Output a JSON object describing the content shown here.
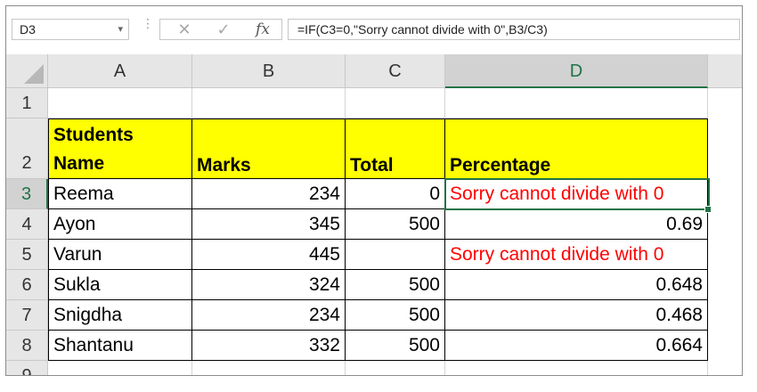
{
  "formula_bar": {
    "name_box": "D3",
    "name_box_dropdown": "▾",
    "separator": "⋮",
    "cancel_icon": "✕",
    "enter_icon": "✓",
    "fx_label": "fx",
    "formula": "=IF(C3=0,\"Sorry cannot divide with 0\",B3/C3)"
  },
  "columns": [
    "A",
    "B",
    "C",
    "D"
  ],
  "rows": [
    "1",
    "2",
    "3",
    "4",
    "5",
    "6",
    "7",
    "8",
    "9"
  ],
  "selected_cell": "D3",
  "headers": {
    "students_line1": "Students",
    "students_line2": "Name",
    "marks": "Marks",
    "total": "Total",
    "percentage": "Percentage"
  },
  "data": [
    {
      "name": "Reema",
      "marks": "234",
      "total": "0",
      "percentage": "Sorry cannot divide with 0"
    },
    {
      "name": "Ayon",
      "marks": "345",
      "total": "500",
      "percentage": "0.69"
    },
    {
      "name": "Varun",
      "marks": "445",
      "total": "",
      "percentage": "Sorry cannot divide with 0"
    },
    {
      "name": "Sukla",
      "marks": "324",
      "total": "500",
      "percentage": "0.648"
    },
    {
      "name": "Snigdha",
      "marks": "234",
      "total": "500",
      "percentage": "0.468"
    },
    {
      "name": "Shantanu",
      "marks": "332",
      "total": "500",
      "percentage": "0.664"
    }
  ],
  "colors": {
    "header_fill": "#ffff00",
    "error_text": "#ff0000",
    "selection": "#217346"
  }
}
